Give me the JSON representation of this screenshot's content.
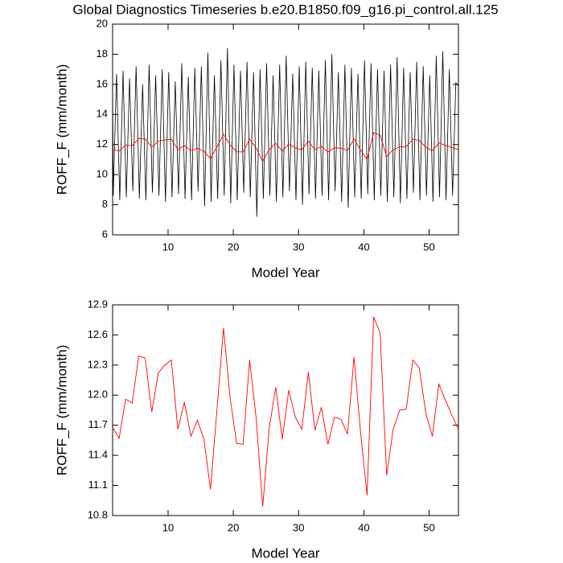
{
  "chart_data": [
    {
      "type": "line",
      "title": "Global Diagnostics Timeseries b.e20.B1850.f09_g16.pi_control.all.125",
      "xlabel": "Model Year",
      "ylabel": "ROFF_F (mm/month)",
      "xlim": [
        1.5,
        54.5
      ],
      "xticks": [
        10,
        20,
        30,
        40,
        50
      ],
      "ylim": [
        6,
        20
      ],
      "yticks": [
        6,
        8,
        10,
        12,
        14,
        16,
        18,
        20
      ],
      "series": [
        {
          "color": "#000000",
          "x": [
            1.5,
            1.6,
            2.1,
            2.6,
            3.1,
            3.6,
            4.1,
            4.6,
            5.1,
            5.6,
            6.1,
            6.6,
            7.1,
            7.6,
            8.1,
            8.6,
            9.1,
            9.6,
            10.1,
            10.6,
            11.1,
            11.6,
            12.1,
            12.6,
            13.1,
            13.6,
            14.1,
            14.6,
            15.1,
            15.6,
            16.1,
            16.6,
            17.1,
            17.6,
            18.1,
            18.6,
            19.1,
            19.6,
            20.1,
            20.6,
            21.1,
            21.6,
            22.1,
            22.6,
            23.1,
            23.6,
            24.1,
            24.6,
            25.1,
            25.6,
            26.1,
            26.6,
            27.1,
            27.6,
            28.1,
            28.6,
            29.1,
            29.6,
            30.1,
            30.6,
            31.1,
            31.6,
            32.1,
            32.6,
            33.1,
            33.6,
            34.1,
            34.6,
            35.1,
            35.6,
            36.1,
            36.6,
            37.1,
            37.6,
            38.1,
            38.6,
            39.1,
            39.6,
            40.1,
            40.6,
            41.1,
            41.6,
            42.1,
            42.6,
            43.1,
            43.6,
            44.1,
            44.6,
            45.1,
            45.6,
            46.1,
            46.6,
            47.1,
            47.6,
            48.1,
            48.6,
            49.1,
            49.6,
            50.1,
            50.6,
            51.1,
            51.6,
            52.1,
            52.6,
            53.1,
            53.6,
            54.1,
            54.5
          ],
          "values": [
            15.7,
            8.6,
            16.7,
            8.3,
            16.9,
            8.5,
            16.4,
            8.9,
            17.2,
            8.4,
            16.0,
            8.3,
            17.3,
            8.8,
            16.6,
            8.6,
            17.0,
            8.2,
            16.8,
            8.5,
            16.2,
            8.7,
            17.4,
            8.4,
            16.5,
            8.3,
            17.1,
            8.9,
            17.2,
            7.9,
            18.1,
            8.2,
            16.6,
            8.4,
            17.6,
            8.6,
            18.4,
            8.1,
            17.3,
            8.3,
            16.9,
            8.8,
            17.5,
            8.5,
            16.8,
            7.2,
            17.0,
            8.4,
            17.4,
            8.6,
            16.6,
            8.2,
            17.3,
            8.5,
            17.9,
            8.9,
            16.7,
            8.3,
            17.2,
            8.0,
            17.5,
            8.7,
            17.1,
            8.4,
            16.9,
            8.6,
            17.6,
            8.3,
            18.0,
            8.9,
            16.8,
            8.2,
            17.3,
            7.8,
            17.1,
            8.5,
            16.7,
            8.4,
            17.6,
            8.7,
            17.4,
            8.3,
            17.0,
            8.6,
            16.9,
            8.2,
            17.3,
            8.5,
            17.8,
            8.1,
            17.1,
            8.4,
            16.8,
            8.8,
            17.5,
            8.3,
            17.2,
            8.6,
            16.6,
            8.2,
            17.9,
            8.5,
            18.2,
            8.3,
            17.0,
            8.6,
            16.1,
            15.9
          ]
        },
        {
          "color": "#ff0000",
          "x": [
            1.5,
            2.5,
            3.5,
            4.5,
            5.5,
            6.5,
            7.5,
            8.5,
            9.5,
            10.5,
            11.5,
            12.5,
            13.5,
            14.5,
            15.5,
            16.5,
            17.5,
            18.5,
            19.5,
            20.5,
            21.5,
            22.5,
            23.5,
            24.5,
            25.5,
            26.5,
            27.5,
            28.5,
            29.5,
            30.5,
            31.5,
            32.5,
            33.5,
            34.5,
            35.5,
            36.5,
            37.5,
            38.5,
            39.5,
            40.5,
            41.5,
            42.5,
            43.5,
            44.5,
            45.5,
            46.5,
            47.5,
            48.5,
            49.5,
            50.5,
            51.5,
            52.5,
            53.5,
            54.5
          ],
          "values": [
            11.68,
            11.57,
            11.96,
            11.92,
            12.39,
            12.37,
            11.83,
            12.22,
            12.3,
            12.35,
            11.66,
            11.93,
            11.59,
            11.75,
            11.56,
            11.06,
            11.86,
            12.67,
            11.98,
            11.52,
            11.51,
            12.35,
            11.77,
            10.89,
            11.67,
            12.08,
            11.56,
            12.05,
            11.78,
            11.66,
            12.23,
            11.65,
            11.88,
            11.51,
            11.78,
            11.76,
            11.61,
            12.38,
            11.63,
            11.0,
            12.78,
            12.62,
            11.2,
            11.66,
            11.85,
            11.86,
            12.35,
            12.27,
            11.82,
            11.59,
            12.11,
            11.95,
            11.8,
            11.66
          ]
        }
      ]
    },
    {
      "type": "line",
      "xlabel": "Model Year",
      "ylabel": "ROFF_F (mm/month)",
      "xlim": [
        1.5,
        54.5
      ],
      "xticks": [
        10,
        20,
        30,
        40,
        50
      ],
      "ylim": [
        10.8,
        12.9
      ],
      "yticks": [
        10.8,
        11.1,
        11.4,
        11.7,
        {
          "value": 12,
          "label": "12.0"
        },
        12.3,
        12.6,
        12.9
      ],
      "series": [
        {
          "color": "#ff0000",
          "x": [
            1.5,
            2.5,
            3.5,
            4.5,
            5.5,
            6.5,
            7.5,
            8.5,
            9.5,
            10.5,
            11.5,
            12.5,
            13.5,
            14.5,
            15.5,
            16.5,
            17.5,
            18.5,
            19.5,
            20.5,
            21.5,
            22.5,
            23.5,
            24.5,
            25.5,
            26.5,
            27.5,
            28.5,
            29.5,
            30.5,
            31.5,
            32.5,
            33.5,
            34.5,
            35.5,
            36.5,
            37.5,
            38.5,
            39.5,
            40.5,
            41.5,
            42.5,
            43.5,
            44.5,
            45.5,
            46.5,
            47.5,
            48.5,
            49.5,
            50.5,
            51.5,
            52.5,
            53.5,
            54.5
          ],
          "values": [
            11.68,
            11.57,
            11.96,
            11.92,
            12.39,
            12.37,
            11.83,
            12.22,
            12.3,
            12.35,
            11.66,
            11.93,
            11.59,
            11.75,
            11.56,
            11.06,
            11.86,
            12.67,
            11.98,
            11.52,
            11.51,
            12.35,
            11.77,
            10.89,
            11.67,
            12.08,
            11.56,
            12.05,
            11.78,
            11.66,
            12.23,
            11.65,
            11.88,
            11.51,
            11.78,
            11.76,
            11.61,
            12.38,
            11.63,
            11.0,
            12.78,
            12.62,
            11.2,
            11.66,
            11.85,
            11.86,
            12.35,
            12.27,
            11.82,
            11.59,
            12.11,
            11.95,
            11.8,
            11.66
          ]
        }
      ]
    }
  ]
}
